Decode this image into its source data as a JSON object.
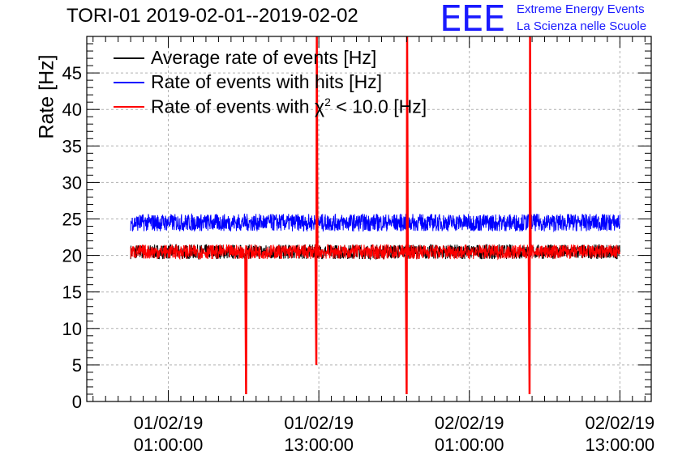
{
  "title": "TORI-01 2019-02-01--2019-02-02",
  "logo": {
    "mark": "EEE",
    "line1": "Extreme Energy Events",
    "line2": "La Scienza nelle Scuole",
    "color": "#1a1aff"
  },
  "chart_data": {
    "type": "line",
    "title": "TORI-01 2019-02-01--2019-02-02",
    "xlabel": "",
    "ylabel": "Rate [Hz]",
    "ylim": [
      0,
      50
    ],
    "yticks": [
      0,
      5,
      10,
      15,
      20,
      25,
      30,
      35,
      40,
      45
    ],
    "xlim_hours": [
      -6.5,
      38.5
    ],
    "xticks": [
      {
        "hour": 0,
        "label": [
          "01/02/19",
          "01:00:00"
        ]
      },
      {
        "hour": 12,
        "label": [
          "01/02/19",
          "13:00:00"
        ]
      },
      {
        "hour": 24,
        "label": [
          "02/02/19",
          "01:00:00"
        ]
      },
      {
        "hour": 36,
        "label": [
          "02/02/19",
          "13:00:00"
        ]
      }
    ],
    "grid": true,
    "legend_position": "top-left",
    "series": [
      {
        "name": "Average rate of events [Hz]",
        "color": "#000000",
        "values_approx": 20.5
      },
      {
        "name": "Rate of events with hits [Hz]",
        "color": "#0000ff",
        "values_approx": 24.5
      },
      {
        "name": "Rate of events with χ² < 10.0 [Hz]",
        "color": "#ff0000",
        "values_approx": 20.5
      }
    ],
    "time_range_hours": [
      -3.0,
      36.0
    ],
    "spikes": [
      {
        "hour": 6.2,
        "min": 1.0,
        "max": 20
      },
      {
        "hour": 11.8,
        "min": 5.0,
        "max": 50
      },
      {
        "hour": 19.0,
        "min": 1.0,
        "max": 50
      },
      {
        "hour": 28.8,
        "min": 1.0,
        "max": 50
      }
    ]
  },
  "legend_items": {
    "item0": "Average rate of events [Hz]",
    "item1": "Rate of events with hits [Hz]",
    "item2_prefix": "Rate of events with χ",
    "item2_sup": "2",
    "item2_suffix": " < 10.0 [Hz]"
  }
}
